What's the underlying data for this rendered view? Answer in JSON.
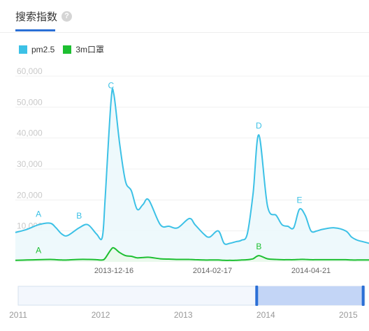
{
  "tab": {
    "label": "搜索指数"
  },
  "chart_data": {
    "type": "area",
    "title": "",
    "xlabel": "",
    "ylabel": "",
    "ylim": [
      0,
      60000
    ],
    "yticks": [
      "60,000",
      "50,000",
      "40,000",
      "30,000",
      "20,000",
      "10,000"
    ],
    "ytick_values": [
      60000,
      50000,
      40000,
      30000,
      20000,
      10000
    ],
    "xaxis_labels": [
      "2013-12-16",
      "2014-02-17",
      "2014-04-21"
    ],
    "xaxis_label_values": [
      2013.96,
      2014.13,
      2014.3
    ],
    "x": [
      2013.79,
      2013.81,
      2013.83,
      2013.85,
      2013.86,
      2013.87,
      2013.88,
      2013.9,
      2013.915,
      2013.93,
      2013.94,
      2013.945,
      2013.955,
      2013.96,
      2013.97,
      2013.98,
      2013.99,
      2014.0,
      2014.01,
      2014.02,
      2014.04,
      2014.055,
      2014.07,
      2014.09,
      2014.1,
      2014.115,
      2014.125,
      2014.14,
      2014.15,
      2014.16,
      2014.17,
      2014.18,
      2014.19,
      2014.2,
      2014.21,
      2014.225,
      2014.24,
      2014.25,
      2014.26,
      2014.27,
      2014.28,
      2014.29,
      2014.3,
      2014.31,
      2014.32,
      2014.34,
      2014.36,
      2014.37,
      2014.38,
      2014.39,
      2014.4
    ],
    "series": [
      {
        "name": "pm2.5",
        "color": "#3cc1e6",
        "values": [
          9500,
          10500,
          12000,
          12500,
          11000,
          9000,
          8500,
          11000,
          12000,
          9000,
          8000,
          21000,
          52000,
          54000,
          38000,
          26000,
          23000,
          17000,
          18500,
          20000,
          12000,
          11500,
          11000,
          14000,
          12000,
          9000,
          8000,
          10000,
          6000,
          6000,
          6500,
          7000,
          9000,
          22000,
          41000,
          18000,
          15000,
          12000,
          11500,
          11000,
          17000,
          15000,
          10000,
          10000,
          10500,
          11000,
          10000,
          8000,
          7000,
          6500,
          6000
        ]
      },
      {
        "name": "3m口罩",
        "color": "#1dbf31",
        "values": [
          500,
          600,
          700,
          800,
          700,
          600,
          600,
          800,
          800,
          700,
          600,
          1200,
          4000,
          4500,
          3000,
          2000,
          1800,
          1300,
          1400,
          1500,
          1000,
          900,
          800,
          800,
          700,
          600,
          600,
          600,
          500,
          500,
          500,
          600,
          700,
          1000,
          2000,
          1000,
          800,
          700,
          700,
          700,
          800,
          800,
          700,
          700,
          700,
          700,
          700,
          600,
          600,
          600,
          600
        ]
      }
    ],
    "annotations": [
      {
        "text": "A",
        "series": "pm2.5",
        "x": 2013.83,
        "y": 12500
      },
      {
        "text": "B",
        "series": "pm2.5",
        "x": 2013.9,
        "y": 12000
      },
      {
        "text": "C",
        "series": "pm2.5",
        "x": 2013.955,
        "y": 54000
      },
      {
        "text": "D",
        "series": "pm2.5",
        "x": 2014.21,
        "y": 41000
      },
      {
        "text": "E",
        "series": "pm2.5",
        "x": 2014.28,
        "y": 17000
      },
      {
        "text": "A",
        "series": "3m口罩",
        "x": 2013.83,
        "y": 800
      },
      {
        "text": "B",
        "series": "3m口罩",
        "x": 2014.21,
        "y": 2000
      }
    ],
    "navigator": {
      "labels": [
        "2011",
        "2012",
        "2013",
        "2014",
        "2015"
      ],
      "label_values": [
        2011,
        2012,
        2013,
        2014,
        2015
      ],
      "range": [
        2011.0,
        2015.2
      ],
      "selection": [
        2013.89,
        2015.18
      ]
    },
    "grid": true,
    "legend": "top-left"
  }
}
